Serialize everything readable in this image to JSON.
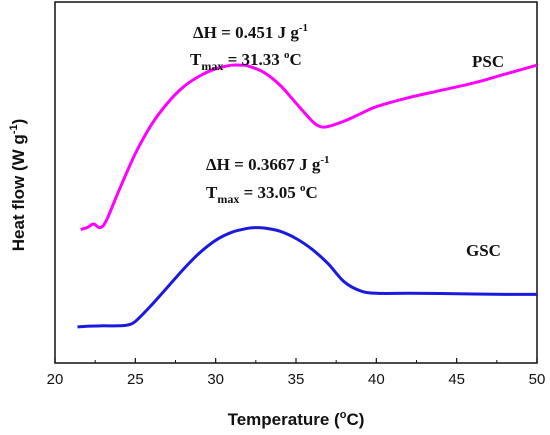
{
  "chart_data": {
    "type": "line",
    "xlabel": "Temperature",
    "xlabel_unit_prefix": "(",
    "xlabel_unit_sup": "o",
    "xlabel_unit_suffix": "C)",
    "ylabel_main": "Heat flow (W g",
    "ylabel_sup": "-1",
    "ylabel_close": ")",
    "xlim": [
      20,
      50
    ],
    "xticks": [
      "20",
      "25",
      "30",
      "35",
      "40",
      "45",
      "50"
    ],
    "y_tick_labels_shown": false,
    "grid": false,
    "series": [
      {
        "name": "PSC",
        "color": "#ff00ff",
        "x": [
          21.6,
          22.0,
          22.4,
          22.8,
          23.2,
          24.0,
          25.0,
          26.0,
          27.0,
          28.0,
          29.0,
          30.0,
          31.0,
          31.5,
          32.0,
          33.0,
          34.0,
          35.0,
          36.0,
          36.5,
          37.0,
          38.0,
          39.0,
          40.0,
          42.0,
          44.0,
          46.0,
          48.0,
          50.0
        ],
        "y": [
          0.21,
          0.215,
          0.225,
          0.215,
          0.235,
          0.32,
          0.42,
          0.5,
          0.56,
          0.605,
          0.635,
          0.655,
          0.665,
          0.665,
          0.663,
          0.645,
          0.61,
          0.56,
          0.51,
          0.495,
          0.495,
          0.51,
          0.53,
          0.55,
          0.575,
          0.595,
          0.615,
          0.64,
          0.665
        ]
      },
      {
        "name": "GSC",
        "color": "#1a1adf",
        "x": [
          21.4,
          22.0,
          23.0,
          24.0,
          24.5,
          25.0,
          26.0,
          27.0,
          28.0,
          29.0,
          30.0,
          31.0,
          32.0,
          32.5,
          33.0,
          34.0,
          35.0,
          36.0,
          37.0,
          38.0,
          39.0,
          40.0,
          42.0,
          45.0,
          48.0,
          50.0
        ],
        "y": [
          -0.06,
          -0.058,
          -0.057,
          -0.057,
          -0.055,
          -0.045,
          0.0,
          0.05,
          0.1,
          0.145,
          0.18,
          0.202,
          0.213,
          0.215,
          0.214,
          0.205,
          0.185,
          0.155,
          0.115,
          0.065,
          0.04,
          0.033,
          0.033,
          0.032,
          0.03,
          0.03
        ]
      }
    ],
    "annotations": [
      {
        "series": "PSC",
        "dh_text": "ΔH = 0.451 J g",
        "dh_sup": "-1",
        "t_main": "T",
        "t_sub": "max",
        "t_value": " = 31.33 ",
        "t_sup": "o",
        "t_unit": "C"
      },
      {
        "series": "GSC",
        "dh_text": "ΔH = 0.3667 J g",
        "dh_sup": "-1",
        "t_main": "T",
        "t_sub": "max",
        "t_value": " = 33.05 ",
        "t_sup": "o",
        "t_unit": "C"
      }
    ]
  }
}
